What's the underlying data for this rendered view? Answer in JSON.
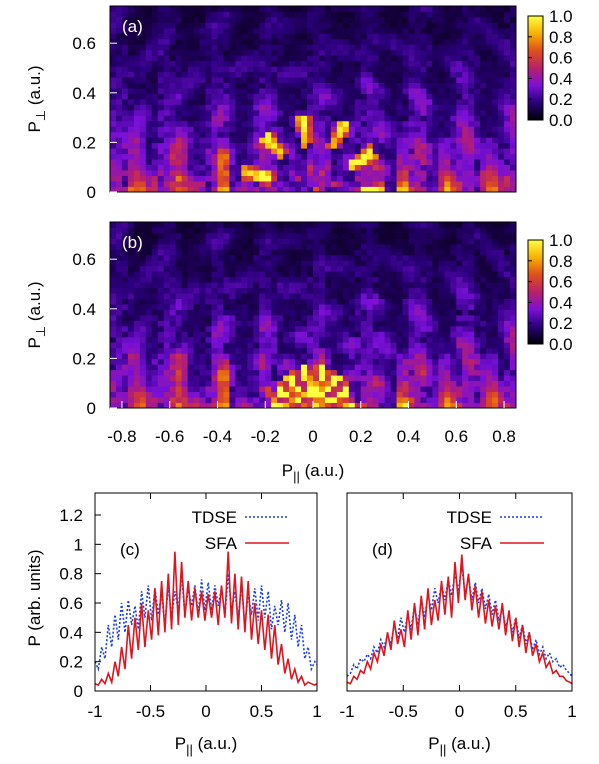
{
  "chart_data": [
    {
      "id": "a",
      "type": "heatmap",
      "panel_label": "(a)",
      "xlim": [
        -0.85,
        0.85
      ],
      "ylim": [
        0,
        0.75
      ],
      "xticks": [],
      "yticks": [
        {
          "v": 0,
          "t": "0"
        },
        {
          "v": 0.2,
          "t": "0.2"
        },
        {
          "v": 0.4,
          "t": "0.4"
        },
        {
          "v": 0.6,
          "t": "0.6"
        }
      ],
      "ylabel_main": "P",
      "ylabel_sub": "⊥",
      "ylabel_unit": " (a.u.)",
      "xlabel_main": "",
      "xlabel_sub": "",
      "xlabel_unit": "",
      "colorbar": {
        "range": [
          0,
          1
        ],
        "ticks": [
          "1.0",
          "0.8",
          "0.6",
          "0.4",
          "0.2",
          "0.0"
        ],
        "colors": [
          "#000000",
          "#2a007a",
          "#7a10d8",
          "#b8206a",
          "#e0501a",
          "#f7b000",
          "#ffff40"
        ]
      },
      "pattern": "ring",
      "seed": 7
    },
    {
      "id": "b",
      "type": "heatmap",
      "panel_label": "(b)",
      "xlim": [
        -0.85,
        0.85
      ],
      "ylim": [
        0,
        0.75
      ],
      "xticks": [
        {
          "v": -0.8,
          "t": "-0.8"
        },
        {
          "v": -0.6,
          "t": "-0.6"
        },
        {
          "v": -0.4,
          "t": "-0.4"
        },
        {
          "v": -0.2,
          "t": "-0.2"
        },
        {
          "v": 0,
          "t": "0"
        },
        {
          "v": 0.2,
          "t": "0.2"
        },
        {
          "v": 0.4,
          "t": "0.4"
        },
        {
          "v": 0.6,
          "t": "0.6"
        },
        {
          "v": 0.8,
          "t": "0.8"
        }
      ],
      "yticks": [
        {
          "v": 0,
          "t": "0"
        },
        {
          "v": 0.2,
          "t": "0.2"
        },
        {
          "v": 0.4,
          "t": "0.4"
        },
        {
          "v": 0.6,
          "t": "0.6"
        }
      ],
      "ylabel_main": "P",
      "ylabel_sub": "⊥",
      "ylabel_unit": " (a.u.)",
      "xlabel_main": "P",
      "xlabel_sub": "||",
      "xlabel_unit": " (a.u.)",
      "colorbar": {
        "range": [
          0,
          1
        ],
        "ticks": [
          "1.0",
          "0.8",
          "0.6",
          "0.4",
          "0.2",
          "0.0"
        ],
        "colors": [
          "#000000",
          "#2a007a",
          "#7a10d8",
          "#b8206a",
          "#e0501a",
          "#f7b000",
          "#ffff40"
        ]
      },
      "pattern": "fan",
      "seed": 19
    },
    {
      "id": "c",
      "type": "line",
      "panel_label": "(c)",
      "xlim": [
        -1,
        1
      ],
      "ylim": [
        0,
        1.35
      ],
      "xticks": [
        {
          "v": -1,
          "t": "-1"
        },
        {
          "v": -0.5,
          "t": "-0.5"
        },
        {
          "v": 0,
          "t": "0"
        },
        {
          "v": 0.5,
          "t": "0.5"
        },
        {
          "v": 1,
          "t": "1"
        }
      ],
      "yticks": [
        {
          "v": 0,
          "t": "0"
        },
        {
          "v": 0.2,
          "t": "0.2"
        },
        {
          "v": 0.4,
          "t": "0.4"
        },
        {
          "v": 0.6,
          "t": "0.6"
        },
        {
          "v": 0.8,
          "t": "0.8"
        },
        {
          "v": 1,
          "t": "1"
        },
        {
          "v": 1.2,
          "t": "1.2"
        }
      ],
      "ylabel": "P (arb. units)",
      "xlabel_main": "P",
      "xlabel_sub": "||",
      "xlabel_unit": " (a.u.)",
      "series": [
        {
          "name": "TDSE",
          "color": "#1a3fe0",
          "dash": "dotted",
          "x": [
            -1,
            -0.97,
            -0.94,
            -0.91,
            -0.88,
            -0.85,
            -0.82,
            -0.79,
            -0.76,
            -0.73,
            -0.7,
            -0.67,
            -0.64,
            -0.61,
            -0.58,
            -0.55,
            -0.52,
            -0.49,
            -0.46,
            -0.43,
            -0.4,
            -0.37,
            -0.34,
            -0.31,
            -0.28,
            -0.25,
            -0.22,
            -0.19,
            -0.16,
            -0.13,
            -0.1,
            -0.07,
            -0.04,
            -0.01,
            0.02,
            0.05,
            0.08,
            0.11,
            0.14,
            0.17,
            0.2,
            0.23,
            0.26,
            0.29,
            0.32,
            0.35,
            0.38,
            0.41,
            0.44,
            0.47,
            0.5,
            0.53,
            0.56,
            0.59,
            0.62,
            0.65,
            0.68,
            0.71,
            0.74,
            0.77,
            0.8,
            0.83,
            0.86,
            0.89,
            0.92,
            0.95,
            0.98,
            1
          ],
          "y": [
            0.2,
            0.15,
            0.3,
            0.22,
            0.45,
            0.3,
            0.52,
            0.35,
            0.6,
            0.4,
            0.62,
            0.45,
            0.58,
            0.42,
            0.68,
            0.5,
            0.72,
            0.48,
            0.7,
            0.52,
            0.66,
            0.45,
            0.72,
            0.5,
            0.68,
            0.55,
            0.8,
            0.52,
            0.7,
            0.58,
            0.72,
            0.52,
            0.76,
            0.55,
            0.74,
            0.55,
            0.72,
            0.58,
            0.7,
            0.52,
            0.8,
            0.55,
            0.68,
            0.5,
            0.72,
            0.45,
            0.66,
            0.52,
            0.7,
            0.48,
            0.72,
            0.5,
            0.68,
            0.42,
            0.58,
            0.45,
            0.62,
            0.4,
            0.6,
            0.35,
            0.52,
            0.3,
            0.45,
            0.22,
            0.3,
            0.15,
            0.2,
            0.18
          ]
        },
        {
          "name": "SFA",
          "color": "#e0141e",
          "dash": "solid",
          "x": [
            -1,
            -0.97,
            -0.94,
            -0.91,
            -0.88,
            -0.85,
            -0.82,
            -0.79,
            -0.76,
            -0.73,
            -0.7,
            -0.67,
            -0.64,
            -0.61,
            -0.58,
            -0.55,
            -0.52,
            -0.49,
            -0.46,
            -0.43,
            -0.4,
            -0.37,
            -0.34,
            -0.31,
            -0.28,
            -0.25,
            -0.22,
            -0.19,
            -0.16,
            -0.13,
            -0.1,
            -0.07,
            -0.04,
            -0.01,
            0.02,
            0.05,
            0.08,
            0.11,
            0.14,
            0.17,
            0.2,
            0.23,
            0.26,
            0.29,
            0.32,
            0.35,
            0.38,
            0.41,
            0.44,
            0.47,
            0.5,
            0.53,
            0.56,
            0.59,
            0.62,
            0.65,
            0.68,
            0.71,
            0.74,
            0.77,
            0.8,
            0.83,
            0.86,
            0.89,
            0.92,
            0.95,
            0.98,
            1
          ],
          "y": [
            0.05,
            0.04,
            0.08,
            0.05,
            0.12,
            0.06,
            0.2,
            0.1,
            0.3,
            0.15,
            0.45,
            0.22,
            0.5,
            0.28,
            0.6,
            0.3,
            0.55,
            0.35,
            0.7,
            0.38,
            0.75,
            0.4,
            0.8,
            0.42,
            0.95,
            0.45,
            0.88,
            0.5,
            0.75,
            0.48,
            0.7,
            0.5,
            0.68,
            0.48,
            0.66,
            0.5,
            0.68,
            0.45,
            0.72,
            0.5,
            0.95,
            0.46,
            0.8,
            0.42,
            0.78,
            0.4,
            0.75,
            0.35,
            0.6,
            0.32,
            0.55,
            0.28,
            0.52,
            0.22,
            0.45,
            0.18,
            0.32,
            0.12,
            0.22,
            0.08,
            0.15,
            0.06,
            0.1,
            0.04,
            0.06,
            0.05,
            0.04,
            0.05
          ]
        }
      ],
      "legend": "top"
    },
    {
      "id": "d",
      "type": "line",
      "panel_label": "(d)",
      "xlim": [
        -1,
        1
      ],
      "ylim": [
        0,
        1.35
      ],
      "xticks": [
        {
          "v": -1,
          "t": "-1"
        },
        {
          "v": -0.5,
          "t": "-0.5"
        },
        {
          "v": 0,
          "t": "0"
        },
        {
          "v": 0.5,
          "t": "0.5"
        },
        {
          "v": 1,
          "t": "1"
        }
      ],
      "yticks": [],
      "ylabel": "",
      "xlabel_main": "P",
      "xlabel_sub": "||",
      "xlabel_unit": " (a.u.)",
      "series": [
        {
          "name": "TDSE",
          "color": "#1a3fe0",
          "dash": "dotted",
          "x": [
            -1,
            -0.97,
            -0.94,
            -0.91,
            -0.88,
            -0.85,
            -0.82,
            -0.79,
            -0.76,
            -0.73,
            -0.7,
            -0.67,
            -0.64,
            -0.61,
            -0.58,
            -0.55,
            -0.52,
            -0.49,
            -0.46,
            -0.43,
            -0.4,
            -0.37,
            -0.34,
            -0.31,
            -0.28,
            -0.25,
            -0.22,
            -0.19,
            -0.16,
            -0.13,
            -0.1,
            -0.07,
            -0.04,
            -0.01,
            0.02,
            0.05,
            0.08,
            0.11,
            0.14,
            0.17,
            0.2,
            0.23,
            0.26,
            0.29,
            0.32,
            0.35,
            0.38,
            0.41,
            0.44,
            0.47,
            0.5,
            0.53,
            0.56,
            0.59,
            0.62,
            0.65,
            0.68,
            0.71,
            0.74,
            0.77,
            0.8,
            0.83,
            0.86,
            0.89,
            0.92,
            0.95,
            0.98,
            1
          ],
          "y": [
            0.1,
            0.12,
            0.18,
            0.15,
            0.22,
            0.2,
            0.25,
            0.22,
            0.3,
            0.26,
            0.35,
            0.3,
            0.38,
            0.32,
            0.45,
            0.36,
            0.5,
            0.4,
            0.52,
            0.42,
            0.58,
            0.45,
            0.62,
            0.5,
            0.66,
            0.55,
            0.7,
            0.6,
            0.72,
            0.62,
            0.76,
            0.65,
            0.8,
            0.68,
            0.85,
            0.66,
            0.78,
            0.62,
            0.74,
            0.6,
            0.7,
            0.56,
            0.66,
            0.52,
            0.62,
            0.48,
            0.56,
            0.44,
            0.52,
            0.4,
            0.5,
            0.36,
            0.45,
            0.32,
            0.4,
            0.28,
            0.35,
            0.25,
            0.3,
            0.22,
            0.26,
            0.2,
            0.22,
            0.16,
            0.18,
            0.14,
            0.12,
            0.1
          ]
        },
        {
          "name": "SFA",
          "color": "#e0141e",
          "dash": "solid",
          "x": [
            -1,
            -0.97,
            -0.94,
            -0.91,
            -0.88,
            -0.85,
            -0.82,
            -0.79,
            -0.76,
            -0.73,
            -0.7,
            -0.67,
            -0.64,
            -0.61,
            -0.58,
            -0.55,
            -0.52,
            -0.49,
            -0.46,
            -0.43,
            -0.4,
            -0.37,
            -0.34,
            -0.31,
            -0.28,
            -0.25,
            -0.22,
            -0.19,
            -0.16,
            -0.13,
            -0.1,
            -0.07,
            -0.04,
            -0.01,
            0.02,
            0.05,
            0.08,
            0.11,
            0.14,
            0.17,
            0.2,
            0.23,
            0.26,
            0.29,
            0.32,
            0.35,
            0.38,
            0.41,
            0.44,
            0.47,
            0.5,
            0.53,
            0.56,
            0.59,
            0.62,
            0.65,
            0.68,
            0.71,
            0.74,
            0.77,
            0.8,
            0.83,
            0.86,
            0.89,
            0.92,
            0.95,
            0.98,
            1
          ],
          "y": [
            0.06,
            0.05,
            0.1,
            0.08,
            0.14,
            0.12,
            0.2,
            0.15,
            0.26,
            0.2,
            0.32,
            0.24,
            0.4,
            0.28,
            0.48,
            0.32,
            0.42,
            0.3,
            0.55,
            0.35,
            0.6,
            0.38,
            0.65,
            0.42,
            0.7,
            0.45,
            0.62,
            0.48,
            0.75,
            0.52,
            0.78,
            0.5,
            0.88,
            0.6,
            0.93,
            0.62,
            0.8,
            0.55,
            0.72,
            0.5,
            0.68,
            0.46,
            0.62,
            0.44,
            0.58,
            0.42,
            0.6,
            0.38,
            0.55,
            0.34,
            0.5,
            0.3,
            0.45,
            0.26,
            0.4,
            0.24,
            0.32,
            0.2,
            0.26,
            0.16,
            0.2,
            0.12,
            0.14,
            0.1,
            0.1,
            0.07,
            0.06,
            0.05
          ]
        }
      ],
      "legend": "top"
    }
  ]
}
